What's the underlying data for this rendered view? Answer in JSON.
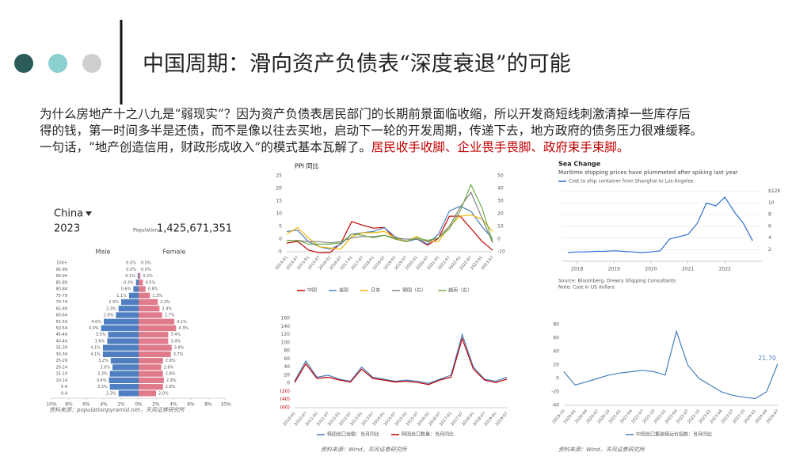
{
  "header": {
    "title": "中国周期：滑向资产负债表“深度衰退”的可能"
  },
  "body": {
    "lines": [
      "为什么房地产十之八九是“弱现实”？因为资产负债表居民部门的长期前景面临收缩，所以开发商短线刺激清掉一些库存后",
      "得的钱，第一时间多半是还债，而不是像以往去买地，启动下一轮的开发周期，传递下去，地方政府的债务压力很难缓释。",
      "一句话，“地产创造信用，财政形成收入”的模式基本瓦解了。"
    ],
    "highlight": "居民收手收脚、企业畏手畏脚、政府束手束脚。"
  },
  "chart_data": [
    {
      "type": "pyramid",
      "title": "China",
      "subtitle": "2023",
      "population_label": "Population",
      "population": "1,425,671,351",
      "categories": [
        "100+",
        "95-99",
        "90-94",
        "85-89",
        "80-84",
        "75-79",
        "70-74",
        "65-69",
        "60-64",
        "55-59",
        "50-54",
        "45-49",
        "40-44",
        "35-39",
        "30-34",
        "25-29",
        "20-24",
        "15-19",
        "10-14",
        "5-9",
        "0-4"
      ],
      "series": [
        {
          "name": "Male",
          "color": "#4f7fc0",
          "values": [
            0,
            0,
            0.1,
            0.3,
            0.6,
            1.1,
            2.0,
            2.3,
            2.6,
            4.0,
            4.3,
            3.5,
            3.6,
            4.1,
            4.1,
            3.2,
            3.0,
            3.3,
            3.4,
            3.3,
            2.3
          ],
          "value_labels": [
            "0.0%",
            "0.0%",
            "0.1%",
            "0.3%",
            "0.6%",
            "1.1%",
            "2.0%",
            "2.3%",
            "2.6%",
            "4.0%",
            "4.3%",
            "3.5%",
            "3.6%",
            "4.1%",
            "4.1%",
            "3.2%",
            "3.0%",
            "3.3%",
            "3.4%",
            "3.3%",
            "2.3%"
          ]
        },
        {
          "name": "Female",
          "color": "#e07b8c",
          "values": [
            0,
            0,
            0.2,
            0.5,
            0.8,
            1.3,
            2.2,
            2.4,
            2.7,
            4.1,
            4.3,
            3.4,
            3.4,
            3.8,
            3.7,
            2.8,
            2.6,
            2.8,
            2.9,
            2.8,
            2.0
          ],
          "value_labels": [
            "0.0%",
            "0.0%",
            "0.2%",
            "0.5%",
            "0.8%",
            "1.3%",
            "2.2%",
            "2.4%",
            "2.7%",
            "4.1%",
            "4.3%",
            "3.4%",
            "3.4%",
            "3.8%",
            "3.7%",
            "2.8%",
            "2.6%",
            "2.8%",
            "2.9%",
            "2.8%",
            "2.0%"
          ]
        }
      ],
      "xlim": [
        0,
        10
      ],
      "xticks": [
        {
          "value": 0,
          "label": "0%"
        },
        {
          "value": 2,
          "label": "2%"
        },
        {
          "value": 4,
          "label": "4%"
        },
        {
          "value": 6,
          "label": "6%"
        },
        {
          "value": 8,
          "label": "8%"
        },
        {
          "value": 10,
          "label": "10%"
        }
      ],
      "source": "资料来源：populationpyramid.net，天风证券研究所"
    },
    {
      "type": "line",
      "title": "PPI 同比",
      "categories": [
        "2014-01",
        "2014-07",
        "2015-01",
        "2015-07",
        "2016-01",
        "2016-07",
        "2017-01",
        "2017-07",
        "2018-01",
        "2018-07",
        "2019-01",
        "2019-07",
        "2020-01",
        "2020-07",
        "2021-01",
        "2021-07",
        "2022-01",
        "2022-07",
        "2023-01",
        "2023-07"
      ],
      "series": [
        {
          "name": "中国",
          "color": "#c00000",
          "values": [
            -1.6,
            -0.9,
            -4.3,
            -5.4,
            -5.3,
            -1.7,
            6.9,
            5.5,
            4.3,
            4.6,
            0.1,
            -0.8,
            0.1,
            -2.4,
            0.3,
            9.0,
            9.1,
            4.2,
            -0.8,
            -4.4
          ]
        },
        {
          "name": "美国",
          "color": "#4a7ebb",
          "values": [
            3.0,
            3.5,
            -1,
            -3,
            -4,
            -2,
            2,
            2.5,
            3,
            4.5,
            1,
            -1,
            0,
            -2,
            2,
            11,
            13,
            11,
            5,
            0
          ]
        },
        {
          "name": "日本",
          "color": "#f2b600",
          "values": [
            2,
            4.5,
            0.5,
            -3,
            -3.5,
            -4,
            1,
            2.5,
            2.5,
            3,
            0.5,
            -1,
            1,
            -1,
            -1,
            5,
            9,
            9.5,
            8,
            3
          ]
        },
        {
          "name": "德国（右）",
          "color": "#808080",
          "axis": "y2",
          "values": [
            -1,
            -1,
            -2,
            -2,
            -3,
            -2,
            1,
            2,
            2,
            3,
            1,
            0,
            0,
            -2,
            1,
            10,
            25,
            37,
            17,
            -3
          ]
        },
        {
          "name": "越南（右）",
          "color": "#70ad47",
          "axis": "y2",
          "values": [
            -1,
            -1,
            -4,
            -4,
            -4,
            -3,
            4,
            3,
            1,
            3,
            0,
            -2,
            1,
            -1,
            1,
            8,
            22,
            43,
            25,
            -2
          ]
        }
      ],
      "ylim": [
        -5,
        25
      ],
      "yticks": [
        -5,
        0,
        5,
        10,
        15,
        20,
        25
      ],
      "y2lim": [
        -10,
        50
      ],
      "y2ticks": [
        -10,
        0,
        10,
        20,
        30,
        40,
        50
      ],
      "grid": false
    },
    {
      "type": "line",
      "title": "Sea Change",
      "subtitle": "Maritime shipping prices have plummeted after spiking last year",
      "x": [
        2017.75,
        2018,
        2018.25,
        2018.5,
        2018.75,
        2019,
        2019.25,
        2019.5,
        2019.75,
        2020,
        2020.25,
        2020.5,
        2020.75,
        2021,
        2021.25,
        2021.5,
        2021.75,
        2022,
        2022.25,
        2022.5,
        2022.75
      ],
      "series": [
        {
          "name": "Cost to ship container from Shanghai to Los Angeles",
          "color": "#2f6fd0",
          "values": [
            1.5,
            1.6,
            1.6,
            1.7,
            1.7,
            1.8,
            1.7,
            1.6,
            1.5,
            1.6,
            1.8,
            3.8,
            4.2,
            4.6,
            6.5,
            10,
            9.5,
            11,
            8.5,
            6.5,
            3.5
          ]
        }
      ],
      "xlim": [
        2017.6,
        2023.0
      ],
      "xticks": [
        2018,
        2019,
        2020,
        2021,
        2022
      ],
      "ylim": [
        0,
        12.5
      ],
      "yticks": [
        2,
        4,
        6,
        8,
        10,
        {
          "value": 12,
          "label": "$12K"
        }
      ],
      "grid": true,
      "source": "Source: Bloomberg, Drewry Shipping Consultants",
      "note": "Note: Cost in US dollars"
    },
    {
      "type": "line",
      "categories": [
        "2010-01",
        "2010-07",
        "2011-01",
        "2011-07",
        "2012-01",
        "2012-07",
        "2013-01",
        "2013-07",
        "2014-01",
        "2014-07",
        "2015-01",
        "2015-07",
        "2016-01",
        "2016-07",
        "2017-01",
        "2017-07",
        "2018-01",
        "2018-07",
        "2019-01",
        "2019-07"
      ],
      "series": [
        {
          "name": "韩国出口金额：当月同比",
          "color": "#4a7ebb",
          "values": [
            5,
            55,
            15,
            20,
            10,
            5,
            40,
            15,
            10,
            5,
            8,
            5,
            0,
            10,
            20,
            120,
            40,
            10,
            5,
            15
          ]
        },
        {
          "name": "韩国出口数量：当月同比",
          "color": "#c00000",
          "values": [
            2,
            48,
            12,
            15,
            8,
            3,
            35,
            12,
            8,
            3,
            5,
            2,
            -3,
            8,
            15,
            110,
            35,
            8,
            2,
            10
          ]
        }
      ],
      "ylim": [
        -60,
        160
      ],
      "yticks": [
        {
          "value": -60,
          "label": "(60)"
        },
        {
          "value": -40,
          "label": "(40)"
        },
        {
          "value": -20,
          "label": "(20)"
        },
        0,
        20,
        40,
        60,
        80,
        100,
        120,
        140,
        160
      ],
      "negative_tick_color": "#c00000",
      "grid": false,
      "source": "资料来源：Wind，天风证券研究所"
    },
    {
      "type": "line",
      "categories": [
        "2019-10",
        "2020-01",
        "2020-04",
        "2020-07",
        "2020-10",
        "2021-01",
        "2021-04",
        "2021-07",
        "2021-10",
        "2022-01",
        "2022-04",
        "2022-07",
        "2022-10",
        "2023-01",
        "2023-04",
        "2023-07",
        "2023-10",
        "2024-01",
        "2024-04",
        "2024-07"
      ],
      "series": [
        {
          "name": "中国出口集装箱运价指数：当月同比",
          "color": "#4a7ebb",
          "values": [
            10,
            -10,
            -5,
            0,
            5,
            8,
            10,
            12,
            10,
            5,
            70,
            20,
            0,
            -10,
            -20,
            -25,
            -28,
            -30,
            -20,
            21.7
          ],
          "value_labels": [
            null,
            null,
            null,
            null,
            null,
            null,
            null,
            null,
            null,
            null,
            null,
            null,
            null,
            null,
            null,
            null,
            null,
            null,
            null,
            "21.70"
          ]
        }
      ],
      "ylim": [
        -40,
        80
      ],
      "yticks": [
        -40,
        -20,
        0,
        20,
        40,
        60,
        80
      ],
      "grid": false,
      "source": "资料来源：Wind，天风证券研究所"
    }
  ]
}
